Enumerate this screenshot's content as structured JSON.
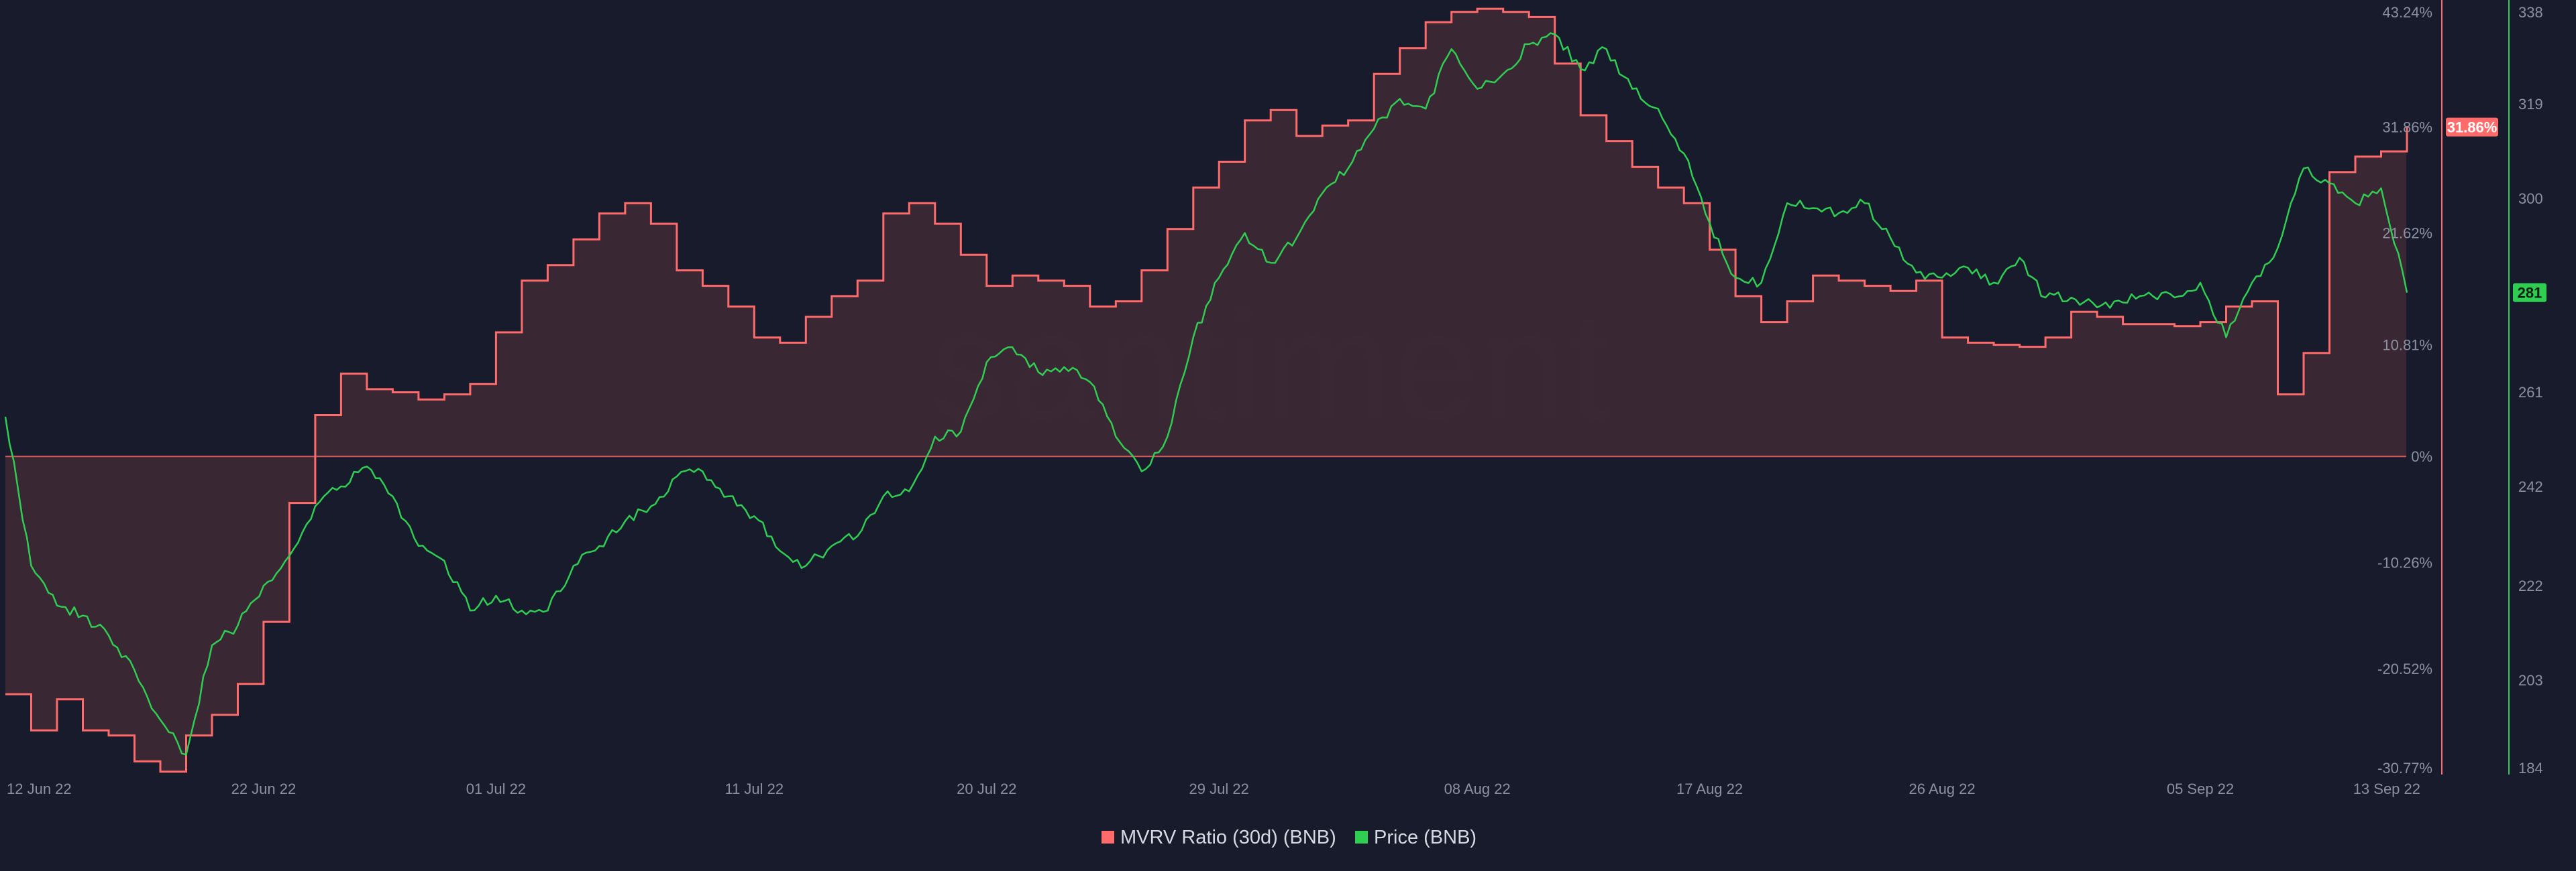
{
  "watermark": "santiment",
  "colors": {
    "background": "#171b2c",
    "mvrv": "#ff6b6b",
    "mvrv_fill": "#3b2834",
    "price": "#2fcd52",
    "zero_line": "#d25a5a",
    "axis_text": "#8b90a3"
  },
  "legend": {
    "mvrv_label": "MVRV Ratio (30d) (BNB)",
    "price_label": "Price (BNB)"
  },
  "badges": {
    "mvrv_last": "31.86%",
    "price_last": "281"
  },
  "chart_data": {
    "type": "line",
    "x_start": "12 Jun 22",
    "x_end": "13 Sep 22",
    "x_ticks": [
      "12 Jun 22",
      "22 Jun 22",
      "01 Jul 22",
      "11 Jul 22",
      "20 Jul 22",
      "29 Jul 22",
      "08 Aug 22",
      "17 Aug 22",
      "26 Aug 22",
      "05 Sep 22",
      "13 Sep 22"
    ],
    "y_left_ticks": [
      "43.24%",
      "31.86%",
      "21.62%",
      "10.81%",
      "0%",
      "-10.26%",
      "-20.52%",
      "-30.77%"
    ],
    "y_right_ticks": [
      "338",
      "319",
      "300",
      "281",
      "261",
      "242",
      "222",
      "203",
      "184"
    ],
    "ylim_mvrv": [
      -30.77,
      43.24
    ],
    "ylim_price": [
      184,
      338
    ],
    "series": [
      {
        "name": "MVRV Ratio (30d) (BNB)",
        "axis": "left",
        "unit": "%",
        "step": true,
        "x": [
          "12 Jun 22",
          "13 Jun 22",
          "14 Jun 22",
          "15 Jun 22",
          "16 Jun 22",
          "17 Jun 22",
          "18 Jun 22",
          "19 Jun 22",
          "20 Jun 22",
          "21 Jun 22",
          "22 Jun 22",
          "23 Jun 22",
          "24 Jun 22",
          "25 Jun 22",
          "26 Jun 22",
          "27 Jun 22",
          "28 Jun 22",
          "29 Jun 22",
          "30 Jun 22",
          "01 Jul 22",
          "02 Jul 22",
          "03 Jul 22",
          "04 Jul 22",
          "05 Jul 22",
          "06 Jul 22",
          "07 Jul 22",
          "08 Jul 22",
          "09 Jul 22",
          "10 Jul 22",
          "11 Jul 22",
          "12 Jul 22",
          "13 Jul 22",
          "14 Jul 22",
          "15 Jul 22",
          "16 Jul 22",
          "17 Jul 22",
          "18 Jul 22",
          "19 Jul 22",
          "20 Jul 22",
          "21 Jul 22",
          "22 Jul 22",
          "23 Jul 22",
          "24 Jul 22",
          "25 Jul 22",
          "26 Jul 22",
          "27 Jul 22",
          "28 Jul 22",
          "29 Jul 22",
          "30 Jul 22",
          "31 Jul 22",
          "01 Aug 22",
          "02 Aug 22",
          "03 Aug 22",
          "04 Aug 22",
          "05 Aug 22",
          "06 Aug 22",
          "07 Aug 22",
          "08 Aug 22",
          "09 Aug 22",
          "10 Aug 22",
          "11 Aug 22",
          "12 Aug 22",
          "13 Aug 22",
          "14 Aug 22",
          "15 Aug 22",
          "16 Aug 22",
          "17 Aug 22",
          "18 Aug 22",
          "19 Aug 22",
          "20 Aug 22",
          "21 Aug 22",
          "22 Aug 22",
          "23 Aug 22",
          "24 Aug 22",
          "25 Aug 22",
          "26 Aug 22",
          "27 Aug 22",
          "28 Aug 22",
          "29 Aug 22",
          "30 Aug 22",
          "31 Aug 22",
          "01 Sep 22",
          "02 Sep 22",
          "03 Sep 22",
          "04 Sep 22",
          "05 Sep 22",
          "06 Sep 22",
          "07 Sep 22",
          "08 Sep 22",
          "09 Sep 22",
          "10 Sep 22",
          "11 Sep 22",
          "12 Sep 22",
          "13 Sep 22"
        ],
        "values": [
          -23.0,
          -26.5,
          -23.5,
          -26.5,
          -27.0,
          -29.5,
          -30.5,
          -27.0,
          -25.0,
          -22.0,
          -16.0,
          -4.5,
          4.0,
          8.0,
          6.5,
          6.2,
          5.5,
          6.0,
          7.0,
          12.0,
          17.0,
          18.5,
          21.0,
          23.5,
          24.5,
          22.5,
          18.0,
          16.5,
          14.5,
          11.5,
          11.0,
          13.5,
          15.5,
          17.0,
          23.5,
          24.5,
          22.5,
          19.5,
          16.5,
          17.5,
          17.0,
          16.5,
          14.5,
          15.0,
          18.0,
          22.0,
          26.0,
          28.5,
          32.5,
          33.5,
          31.0,
          32.0,
          32.5,
          37.0,
          39.5,
          42.0,
          43.0,
          43.3,
          43.0,
          42.5,
          38.0,
          33.0,
          30.5,
          28.0,
          26.0,
          24.5,
          20.0,
          15.5,
          13.0,
          15.0,
          17.5,
          17.0,
          16.5,
          16.0,
          17.0,
          11.5,
          11.0,
          10.8,
          10.6,
          11.5,
          14.0,
          13.5,
          12.8,
          12.8,
          12.6,
          13.0,
          14.5,
          15.0,
          6.0,
          10.0,
          27.5,
          29.0,
          29.5,
          31.86
        ]
      },
      {
        "name": "Price (BNB)",
        "axis": "right",
        "x": [
          "12 Jun 22",
          "13 Jun 22",
          "14 Jun 22",
          "15 Jun 22",
          "16 Jun 22",
          "17 Jun 22",
          "18 Jun 22",
          "19 Jun 22",
          "20 Jun 22",
          "21 Jun 22",
          "22 Jun 22",
          "23 Jun 22",
          "24 Jun 22",
          "25 Jun 22",
          "26 Jun 22",
          "27 Jun 22",
          "28 Jun 22",
          "29 Jun 22",
          "30 Jun 22",
          "01 Jul 22",
          "02 Jul 22",
          "03 Jul 22",
          "04 Jul 22",
          "05 Jul 22",
          "06 Jul 22",
          "07 Jul 22",
          "08 Jul 22",
          "09 Jul 22",
          "10 Jul 22",
          "11 Jul 22",
          "12 Jul 22",
          "13 Jul 22",
          "14 Jul 22",
          "15 Jul 22",
          "16 Jul 22",
          "17 Jul 22",
          "18 Jul 22",
          "19 Jul 22",
          "20 Jul 22",
          "21 Jul 22",
          "22 Jul 22",
          "23 Jul 22",
          "24 Jul 22",
          "25 Jul 22",
          "26 Jul 22",
          "27 Jul 22",
          "28 Jul 22",
          "29 Jul 22",
          "30 Jul 22",
          "31 Jul 22",
          "01 Aug 22",
          "02 Aug 22",
          "03 Aug 22",
          "04 Aug 22",
          "05 Aug 22",
          "06 Aug 22",
          "07 Aug 22",
          "08 Aug 22",
          "09 Aug 22",
          "10 Aug 22",
          "11 Aug 22",
          "12 Aug 22",
          "13 Aug 22",
          "14 Aug 22",
          "15 Aug 22",
          "16 Aug 22",
          "17 Aug 22",
          "18 Aug 22",
          "19 Aug 22",
          "20 Aug 22",
          "21 Aug 22",
          "22 Aug 22",
          "23 Aug 22",
          "24 Aug 22",
          "25 Aug 22",
          "26 Aug 22",
          "27 Aug 22",
          "28 Aug 22",
          "29 Aug 22",
          "30 Aug 22",
          "31 Aug 22",
          "01 Sep 22",
          "02 Sep 22",
          "03 Sep 22",
          "04 Sep 22",
          "05 Sep 22",
          "06 Sep 22",
          "07 Sep 22",
          "08 Sep 22",
          "09 Sep 22",
          "10 Sep 22",
          "11 Sep 22",
          "12 Sep 22",
          "13 Sep 22"
        ],
        "values": [
          256,
          226,
          218,
          216,
          212,
          205,
          195,
          188,
          210,
          214,
          222,
          228,
          238,
          242,
          246,
          240,
          230,
          227,
          217,
          220,
          217,
          217,
          226,
          230,
          235,
          238,
          244,
          245,
          240,
          236,
          229,
          226,
          230,
          232,
          240,
          241,
          252,
          253,
          267,
          270,
          265,
          266,
          263,
          252,
          245,
          252,
          272,
          284,
          293,
          287,
          292,
          301,
          306,
          314,
          320,
          318,
          330,
          322,
          325,
          331,
          333,
          326,
          330,
          322,
          318,
          309,
          295,
          284,
          283,
          299,
          298,
          297,
          299,
          292,
          285,
          284,
          286,
          283,
          288,
          280,
          280,
          278,
          279,
          281,
          280,
          283,
          272,
          283,
          290,
          306,
          303,
          299,
          302,
          281
        ]
      }
    ]
  }
}
